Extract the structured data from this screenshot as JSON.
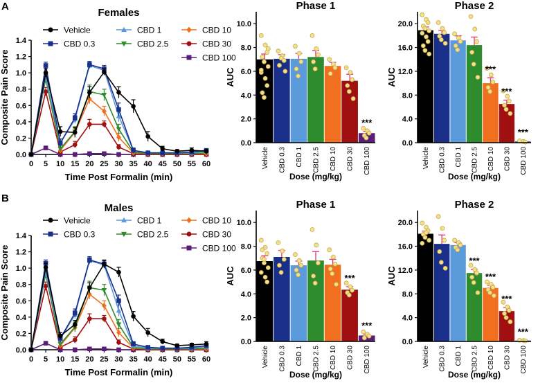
{
  "panel_labels": [
    "A",
    "B"
  ],
  "colors": {
    "Vehicle": "#000000",
    "CBD 0.3": "#1a2f8a",
    "CBD 1": "#5b9bdc",
    "CBD 2.5": "#2e8b2e",
    "CBD 10": "#f07020",
    "CBD 30": "#a01010",
    "CBD 100": "#5a1e7a",
    "dot_fill": "#f2e08a",
    "dot_stroke": "#c9a84a",
    "error": "#e0307a"
  },
  "chart_data": [
    {
      "id": "females-timecourse",
      "type": "line",
      "title": "Females",
      "xlabel": "Time Post Formalin (min)",
      "ylabel": "Composite Pain Score",
      "xlim": [
        0,
        60
      ],
      "ylim": [
        0,
        1.4
      ],
      "xticks": [
        0,
        5,
        10,
        15,
        20,
        25,
        30,
        35,
        40,
        45,
        50,
        55,
        60
      ],
      "yticks": [
        0.0,
        0.2,
        0.4,
        0.6,
        0.8,
        1.0,
        1.2,
        1.4
      ],
      "legend": [
        "Vehicle",
        "CBD 1",
        "CBD 10",
        "CBD 0.3",
        "CBD 2.5",
        "CBD 30",
        "CBD 100"
      ],
      "x": [
        0,
        5,
        10,
        15,
        20,
        25,
        30,
        35,
        40,
        45,
        50,
        55,
        60
      ],
      "series": [
        {
          "name": "Vehicle",
          "marker": "circle",
          "values": [
            0,
            1.0,
            0.28,
            0.27,
            0.76,
            1.01,
            0.76,
            0.59,
            0.22,
            0.07,
            0.04,
            0.05,
            0.04
          ],
          "err": [
            0,
            0.05,
            0.06,
            0.06,
            0.07,
            0.04,
            0.07,
            0.08,
            0.06,
            0.03,
            0.02,
            0.03,
            0.02
          ]
        },
        {
          "name": "CBD 0.3",
          "marker": "square",
          "values": [
            0,
            1.09,
            0.14,
            0.45,
            1.1,
            1.05,
            0.55,
            0.05,
            0.02,
            0.02,
            0.02,
            0.03,
            0.05
          ],
          "err": [
            0,
            0.04,
            0.05,
            0.05,
            0.04,
            0.04,
            0.08,
            0.03,
            0.01,
            0.01,
            0.01,
            0.02,
            0.02
          ]
        },
        {
          "name": "CBD 1",
          "marker": "triangle",
          "values": [
            0,
            0.96,
            0.14,
            0.43,
            1.09,
            1.03,
            0.47,
            0.05,
            0.02,
            0.02,
            0.02,
            0.02,
            0.04
          ],
          "err": [
            0,
            0.04,
            0.05,
            0.05,
            0.04,
            0.04,
            0.07,
            0.03,
            0.01,
            0.01,
            0.01,
            0.01,
            0.02
          ]
        },
        {
          "name": "CBD 2.5",
          "marker": "triangle-down",
          "values": [
            0,
            0.93,
            0.07,
            0.28,
            0.77,
            0.73,
            0.31,
            0.03,
            0.01,
            0.01,
            0.01,
            0.01,
            0.02
          ],
          "err": [
            0,
            0.05,
            0.04,
            0.06,
            0.08,
            0.07,
            0.06,
            0.02,
            0.01,
            0.01,
            0.01,
            0.01,
            0.01
          ]
        },
        {
          "name": "CBD 10",
          "marker": "diamond",
          "values": [
            0,
            0.93,
            0.05,
            0.27,
            0.68,
            0.53,
            0.21,
            0.02,
            0.01,
            0.01,
            0.01,
            0.01,
            0.01
          ],
          "err": [
            0,
            0.05,
            0.03,
            0.05,
            0.06,
            0.06,
            0.05,
            0.01,
            0.01,
            0.01,
            0.01,
            0.01,
            0.01
          ]
        },
        {
          "name": "CBD 30",
          "marker": "circle",
          "values": [
            0,
            0.77,
            0.03,
            0.12,
            0.37,
            0.37,
            0.09,
            0.01,
            0.0,
            0.0,
            0.0,
            0.0,
            0.0
          ],
          "err": [
            0,
            0.05,
            0.02,
            0.04,
            0.06,
            0.04,
            0.03,
            0.01,
            0.0,
            0.0,
            0.0,
            0.0,
            0.0
          ]
        },
        {
          "name": "CBD 100",
          "marker": "square",
          "values": [
            0,
            0.08,
            0.0,
            0.0,
            0.01,
            0.01,
            0.0,
            0.0,
            0.0,
            0.0,
            0.0,
            0.0,
            0.0
          ],
          "err": [
            0,
            0.02,
            0.0,
            0.0,
            0.01,
            0.01,
            0.0,
            0.0,
            0.0,
            0.0,
            0.0,
            0.0,
            0.0
          ]
        }
      ]
    },
    {
      "id": "females-phase1",
      "type": "bar",
      "title": "Phase 1",
      "xlabel": "Dose (mg/kg)",
      "ylabel": "AUC",
      "ylim": [
        0,
        11
      ],
      "yticks": [
        0.0,
        2.0,
        4.0,
        6.0,
        8.0,
        10.0
      ],
      "tick_decimals": 1,
      "categories": [
        "Vehicle",
        "CBD 0.3",
        "CBD 1",
        "CBD 2.5",
        "CBD 10",
        "CBD 30",
        "CBD 100"
      ],
      "values": [
        7.0,
        7.05,
        7.05,
        7.2,
        6.45,
        5.2,
        0.8
      ],
      "errors": [
        0.45,
        0.35,
        0.45,
        0.55,
        0.3,
        0.55,
        0.15
      ],
      "annotations": [
        "",
        "",
        "",
        "",
        "",
        "",
        "***"
      ],
      "points": [
        [
          9.0,
          8.2,
          7.6,
          7.2,
          6.8,
          6.4,
          5.9,
          5.4,
          4.8,
          4.2,
          3.8,
          7.9,
          6.1
        ],
        [
          7.7,
          7.3,
          6.9,
          6.5,
          7.1,
          6.0
        ],
        [
          8.1,
          7.5,
          6.8,
          6.2,
          5.6
        ],
        [
          9.0,
          7.9,
          7.4,
          6.8,
          6.2
        ],
        [
          7.0,
          6.6,
          6.3,
          5.8
        ],
        [
          6.3,
          5.9,
          5.3,
          4.8,
          4.3,
          3.7
        ],
        [
          1.2,
          1.0,
          0.8,
          0.6,
          0.4
        ]
      ]
    },
    {
      "id": "females-phase2",
      "type": "bar",
      "title": "Phase 2",
      "xlabel": "Dose (mg/kg)",
      "ylabel": "AUC",
      "ylim": [
        0,
        22
      ],
      "yticks": [
        0.0,
        4.0,
        8.0,
        12.0,
        16.0,
        20.0
      ],
      "tick_decimals": 1,
      "categories": [
        "Vehicle",
        "CBD 0.3",
        "CBD 1",
        "CBD 2.5",
        "CBD 10",
        "CBD 30",
        "CBD 100"
      ],
      "values": [
        18.9,
        18.3,
        17.2,
        16.4,
        10.0,
        6.5,
        0.2
      ],
      "errors": [
        0.55,
        0.55,
        0.75,
        1.35,
        0.9,
        0.65,
        0.1
      ],
      "annotations": [
        "",
        "",
        "",
        "",
        "***",
        "***",
        "***"
      ],
      "points": [
        [
          21.5,
          20.7,
          20.2,
          19.6,
          19.2,
          18.8,
          18.4,
          17.8,
          17.0,
          16.3,
          15.5,
          14.9
        ],
        [
          20.2,
          19.2,
          18.5,
          17.9,
          17.3,
          16.7
        ],
        [
          18.3,
          17.6,
          17.0,
          16.3,
          15.6
        ],
        [
          21.2,
          19.1,
          17.0,
          15.2,
          13.2,
          11.0
        ],
        [
          12.5,
          11.4,
          10.2,
          9.3,
          8.6
        ],
        [
          8.7,
          7.8,
          7.0,
          6.3,
          5.6,
          4.9
        ],
        [
          0.3,
          0.2,
          0.1
        ]
      ]
    },
    {
      "id": "males-timecourse",
      "type": "line",
      "title": "Males",
      "xlabel": "Time Post Formalin (min)",
      "ylabel": "Composite Pain Score",
      "xlim": [
        0,
        60
      ],
      "ylim": [
        0,
        1.4
      ],
      "xticks": [
        0,
        5,
        10,
        15,
        20,
        25,
        30,
        35,
        40,
        45,
        50,
        55,
        60
      ],
      "yticks": [
        0.0,
        0.2,
        0.4,
        0.6,
        0.8,
        1.0,
        1.2,
        1.4
      ],
      "legend": [
        "Vehicle",
        "CBD 1",
        "CBD 10",
        "CBD 0.3",
        "CBD 2.5",
        "CBD 30",
        "CBD 100"
      ],
      "x": [
        0,
        5,
        10,
        15,
        20,
        25,
        30,
        35,
        40,
        45,
        50,
        55,
        60
      ],
      "series": [
        {
          "name": "Vehicle",
          "marker": "circle",
          "values": [
            0,
            1.01,
            0.17,
            0.31,
            0.76,
            1.05,
            0.95,
            0.41,
            0.21,
            0.1,
            0.05,
            0.06,
            0.07
          ],
          "err": [
            0,
            0.05,
            0.04,
            0.05,
            0.06,
            0.05,
            0.06,
            0.06,
            0.05,
            0.03,
            0.02,
            0.02,
            0.03
          ]
        },
        {
          "name": "CBD 0.3",
          "marker": "square",
          "values": [
            0,
            1.06,
            0.14,
            0.45,
            1.1,
            1.05,
            0.6,
            0.07,
            0.03,
            0.02,
            0.02,
            0.03,
            0.05
          ],
          "err": [
            0,
            0.04,
            0.05,
            0.05,
            0.04,
            0.04,
            0.07,
            0.03,
            0.02,
            0.01,
            0.01,
            0.02,
            0.02
          ]
        },
        {
          "name": "CBD 1",
          "marker": "triangle",
          "values": [
            0,
            0.96,
            0.13,
            0.43,
            1.09,
            1.04,
            0.48,
            0.05,
            0.02,
            0.02,
            0.02,
            0.02,
            0.04
          ],
          "err": [
            0,
            0.04,
            0.05,
            0.05,
            0.04,
            0.04,
            0.07,
            0.03,
            0.01,
            0.01,
            0.01,
            0.01,
            0.02
          ]
        },
        {
          "name": "CBD 2.5",
          "marker": "triangle-down",
          "values": [
            0,
            0.93,
            0.07,
            0.28,
            0.76,
            0.73,
            0.31,
            0.03,
            0.01,
            0.01,
            0.01,
            0.01,
            0.02
          ],
          "err": [
            0,
            0.05,
            0.04,
            0.06,
            0.08,
            0.07,
            0.06,
            0.02,
            0.01,
            0.01,
            0.01,
            0.01,
            0.01
          ]
        },
        {
          "name": "CBD 10",
          "marker": "diamond",
          "values": [
            0,
            0.93,
            0.05,
            0.27,
            0.68,
            0.54,
            0.21,
            0.02,
            0.01,
            0.01,
            0.01,
            0.01,
            0.01
          ],
          "err": [
            0,
            0.05,
            0.03,
            0.05,
            0.06,
            0.06,
            0.05,
            0.01,
            0.01,
            0.01,
            0.01,
            0.01,
            0.01
          ]
        },
        {
          "name": "CBD 30",
          "marker": "circle",
          "values": [
            0,
            0.78,
            0.03,
            0.12,
            0.38,
            0.38,
            0.09,
            0.01,
            0.0,
            0.0,
            0.0,
            0.0,
            0.0
          ],
          "err": [
            0,
            0.05,
            0.02,
            0.04,
            0.06,
            0.04,
            0.03,
            0.01,
            0.0,
            0.0,
            0.0,
            0.0,
            0.0
          ]
        },
        {
          "name": "CBD 100",
          "marker": "square",
          "values": [
            0,
            0.08,
            0.0,
            0.0,
            0.01,
            0.01,
            0.0,
            0.0,
            0.0,
            0.0,
            0.0,
            0.0,
            0.0
          ],
          "err": [
            0,
            0.02,
            0.0,
            0.0,
            0.01,
            0.01,
            0.0,
            0.0,
            0.0,
            0.0,
            0.0,
            0.0,
            0.0
          ]
        }
      ]
    },
    {
      "id": "males-phase1",
      "type": "bar",
      "title": "Phase 1",
      "xlabel": "Dose (mg/kg)",
      "ylabel": "AUC",
      "ylim": [
        0,
        11
      ],
      "yticks": [
        0.0,
        2.0,
        4.0,
        6.0,
        8.0,
        10.0
      ],
      "tick_decimals": 1,
      "categories": [
        "Vehicle",
        "CBD 0.3",
        "CBD 1",
        "CBD 2.5",
        "CBD 10",
        "CBD 30",
        "CBD 100"
      ],
      "values": [
        6.75,
        7.1,
        6.4,
        6.8,
        6.45,
        4.35,
        0.5
      ],
      "errors": [
        0.45,
        0.55,
        0.35,
        0.75,
        0.45,
        0.25,
        0.1
      ],
      "annotations": [
        "",
        "",
        "",
        "",
        "",
        "***",
        "***"
      ],
      "points": [
        [
          8.5,
          7.9,
          7.4,
          7.0,
          6.6,
          6.2,
          5.8,
          5.4,
          5.0,
          7.7,
          6.9
        ],
        [
          8.3,
          7.6,
          6.9,
          6.4,
          5.8
        ],
        [
          7.3,
          6.8,
          6.4,
          6.0,
          5.6
        ],
        [
          9.4,
          8.1,
          6.6,
          5.5,
          4.9
        ],
        [
          7.7,
          7.1,
          6.5,
          6.1,
          5.7,
          4.8
        ],
        [
          4.9,
          4.6,
          4.3,
          4.1,
          3.9
        ],
        [
          0.8,
          0.6,
          0.45,
          0.3
        ]
      ]
    },
    {
      "id": "males-phase2",
      "type": "bar",
      "title": "Phase 2",
      "xlabel": "Dose (mg/kg)",
      "ylabel": "AUC",
      "ylim": [
        0,
        22
      ],
      "yticks": [
        0.0,
        4.0,
        8.0,
        12.0,
        16.0,
        20.0
      ],
      "tick_decimals": 1,
      "categories": [
        "Vehicle",
        "CBD 0.3",
        "CBD 1",
        "CBD 2.5",
        "CBD 10",
        "CBD 30",
        "CBD 100"
      ],
      "values": [
        18.1,
        16.4,
        16.2,
        11.5,
        9.0,
        5.1,
        0.15
      ],
      "errors": [
        0.45,
        1.5,
        0.4,
        0.6,
        0.45,
        0.6,
        0.05
      ],
      "annotations": [
        "",
        "",
        "",
        "***",
        "***",
        "***",
        "***"
      ],
      "points": [
        [
          19.9,
          19.2,
          18.6,
          18.0,
          17.5,
          17.0,
          16.5,
          18.3
        ],
        [
          21.0,
          19.0,
          17.0,
          15.1,
          13.3,
          12.3
        ],
        [
          17.0,
          16.6,
          16.2,
          15.8,
          15.4
        ],
        [
          12.8,
          12.1,
          11.5,
          10.8,
          9.9,
          8.2
        ],
        [
          10.0,
          9.6,
          9.1,
          8.7,
          8.2,
          7.7
        ],
        [
          6.6,
          5.8,
          5.2,
          4.7,
          4.0,
          3.3
        ],
        [
          0.2,
          0.15,
          0.1
        ]
      ]
    }
  ]
}
